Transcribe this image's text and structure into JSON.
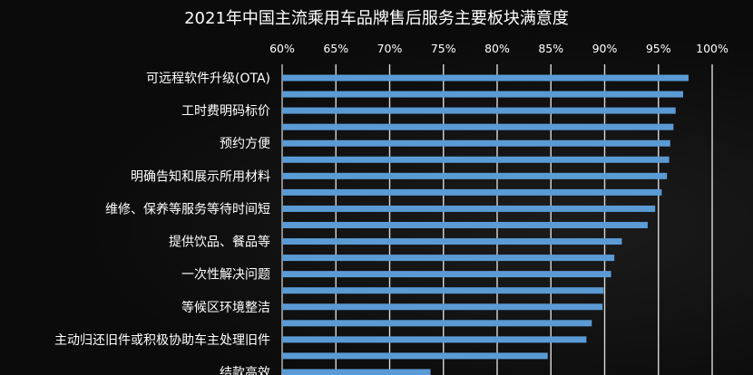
{
  "chart_data": {
    "type": "bar",
    "orientation": "horizontal",
    "title": "2021年中国主流乘用车品牌售后服务主要板块满意度",
    "xlim": [
      60,
      100
    ],
    "x_ticks": [
      "60%",
      "65%",
      "70%",
      "75%",
      "80%",
      "85%",
      "90%",
      "95%",
      "100%"
    ],
    "x_tick_values": [
      60,
      65,
      70,
      75,
      80,
      85,
      90,
      95,
      100
    ],
    "x_axis_position": "top",
    "grid": true,
    "bar_color": "#5b9bd5",
    "categories": [
      "可远程软件升级(OTA)",
      "",
      "工时费明码标价",
      "",
      "预约方便",
      "",
      "明确告知和展示所用材料",
      "",
      "维修、保养等服务等待时间短",
      "",
      "提供饮品、餐品等",
      "",
      "一次性解决问题",
      "",
      "等候区环境整洁",
      "",
      "主动归还旧件或积极协助车主处理旧件",
      "",
      "结款高效"
    ],
    "values": [
      97.8,
      97.3,
      96.6,
      96.4,
      96.1,
      96.0,
      95.8,
      95.3,
      94.7,
      94.0,
      91.6,
      90.9,
      90.6,
      89.9,
      89.8,
      88.8,
      88.3,
      84.7,
      73.8
    ]
  }
}
